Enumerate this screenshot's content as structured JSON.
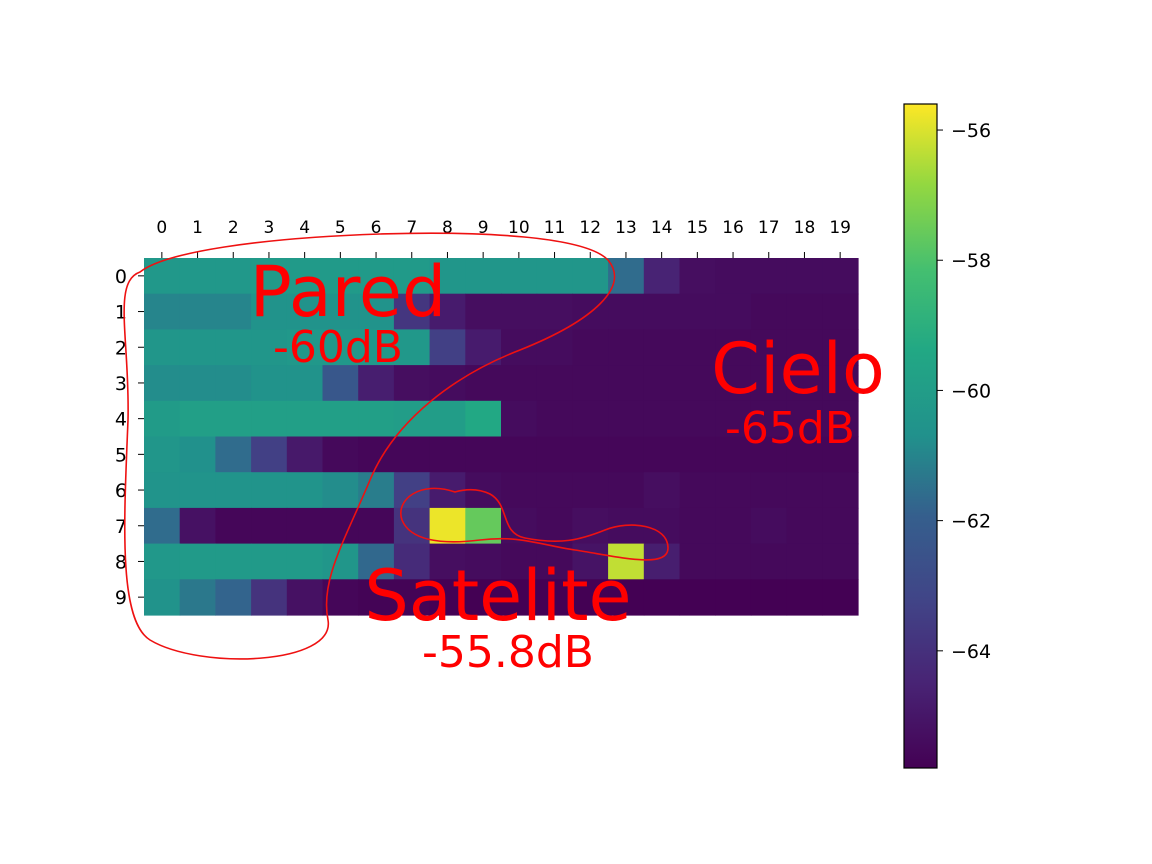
{
  "chart_data": {
    "type": "heatmap",
    "title": "",
    "xlabel": "",
    "ylabel": "",
    "x_ticks": [
      "0",
      "1",
      "2",
      "3",
      "4",
      "5",
      "6",
      "7",
      "8",
      "9",
      "10",
      "11",
      "12",
      "13",
      "14",
      "15",
      "16",
      "17",
      "18",
      "19"
    ],
    "y_ticks": [
      "0",
      "1",
      "2",
      "3",
      "4",
      "5",
      "6",
      "7",
      "8",
      "9"
    ],
    "x_axis_position": "top",
    "colormap": "viridis",
    "vmin": -65.8,
    "vmax": -55.6,
    "colorbar_ticks": [
      "−56",
      "−58",
      "−60",
      "−62",
      "−64"
    ],
    "colorbar_tick_values": [
      -56,
      -58,
      -60,
      -62,
      -64
    ],
    "values": [
      [
        -60.3,
        -60.3,
        -60.3,
        -60.2,
        -60.2,
        -60.2,
        -60.2,
        -60.2,
        -60.4,
        -60.4,
        -60.4,
        -60.4,
        -60.4,
        -61.6,
        -64.5,
        -65.3,
        -65.4,
        -65.4,
        -65.4,
        -65.4
      ],
      [
        -61.0,
        -61.0,
        -61.0,
        -60.6,
        -60.6,
        -60.6,
        -60.6,
        -63.8,
        -64.8,
        -65.3,
        -65.3,
        -65.3,
        -65.4,
        -65.4,
        -65.4,
        -65.4,
        -65.4,
        -65.5,
        -65.5,
        -65.5
      ],
      [
        -60.4,
        -60.4,
        -60.4,
        -60.4,
        -60.3,
        -60.3,
        -60.3,
        -60.3,
        -63.4,
        -64.8,
        -65.4,
        -65.4,
        -65.5,
        -65.5,
        -65.5,
        -65.5,
        -65.5,
        -65.5,
        -65.5,
        -65.5
      ],
      [
        -60.8,
        -60.8,
        -60.8,
        -60.6,
        -60.6,
        -62.3,
        -64.7,
        -65.3,
        -65.4,
        -65.5,
        -65.5,
        -65.5,
        -65.5,
        -65.5,
        -65.5,
        -65.5,
        -65.5,
        -65.5,
        -65.5,
        -65.5
      ],
      [
        -60.1,
        -59.9,
        -59.9,
        -59.9,
        -59.9,
        -59.9,
        -59.9,
        -60.0,
        -60.0,
        -59.4,
        -65.4,
        -65.5,
        -65.5,
        -65.5,
        -65.5,
        -65.5,
        -65.5,
        -65.5,
        -65.5,
        -65.5
      ],
      [
        -60.4,
        -60.7,
        -61.6,
        -63.4,
        -64.9,
        -65.5,
        -65.6,
        -65.6,
        -65.6,
        -65.6,
        -65.6,
        -65.6,
        -65.6,
        -65.6,
        -65.6,
        -65.6,
        -65.6,
        -65.6,
        -65.6,
        -65.6
      ],
      [
        -60.5,
        -60.5,
        -60.5,
        -60.5,
        -60.5,
        -60.8,
        -61.2,
        -63.4,
        -64.8,
        -65.4,
        -65.5,
        -65.5,
        -65.5,
        -65.5,
        -65.3,
        -65.5,
        -65.5,
        -65.5,
        -65.5,
        -65.5
      ],
      [
        -61.6,
        -65.2,
        -65.6,
        -65.6,
        -65.6,
        -65.6,
        -65.6,
        -63.9,
        -55.8,
        -57.6,
        -65.4,
        -65.5,
        -65.3,
        -65.4,
        -65.4,
        -65.5,
        -65.5,
        -65.4,
        -65.5,
        -65.5
      ],
      [
        -60.3,
        -60.2,
        -60.2,
        -60.2,
        -60.2,
        -60.4,
        -61.7,
        -64.2,
        -65.3,
        -65.4,
        -65.5,
        -65.5,
        -65.1,
        -56.3,
        -64.7,
        -65.5,
        -65.5,
        -65.5,
        -65.5,
        -65.5
      ],
      [
        -60.6,
        -61.3,
        -61.8,
        -63.9,
        -65.2,
        -65.6,
        -65.7,
        -65.7,
        -65.8,
        -65.8,
        -65.8,
        -65.8,
        -65.8,
        -65.8,
        -65.8,
        -65.8,
        -65.8,
        -65.8,
        -65.8,
        -65.8
      ]
    ],
    "annotations": [
      {
        "label": "Pared",
        "value": "-60dB"
      },
      {
        "label": "Cielo",
        "value": "-65dB"
      },
      {
        "label": "Satelite",
        "value": "-55.8dB"
      }
    ]
  }
}
